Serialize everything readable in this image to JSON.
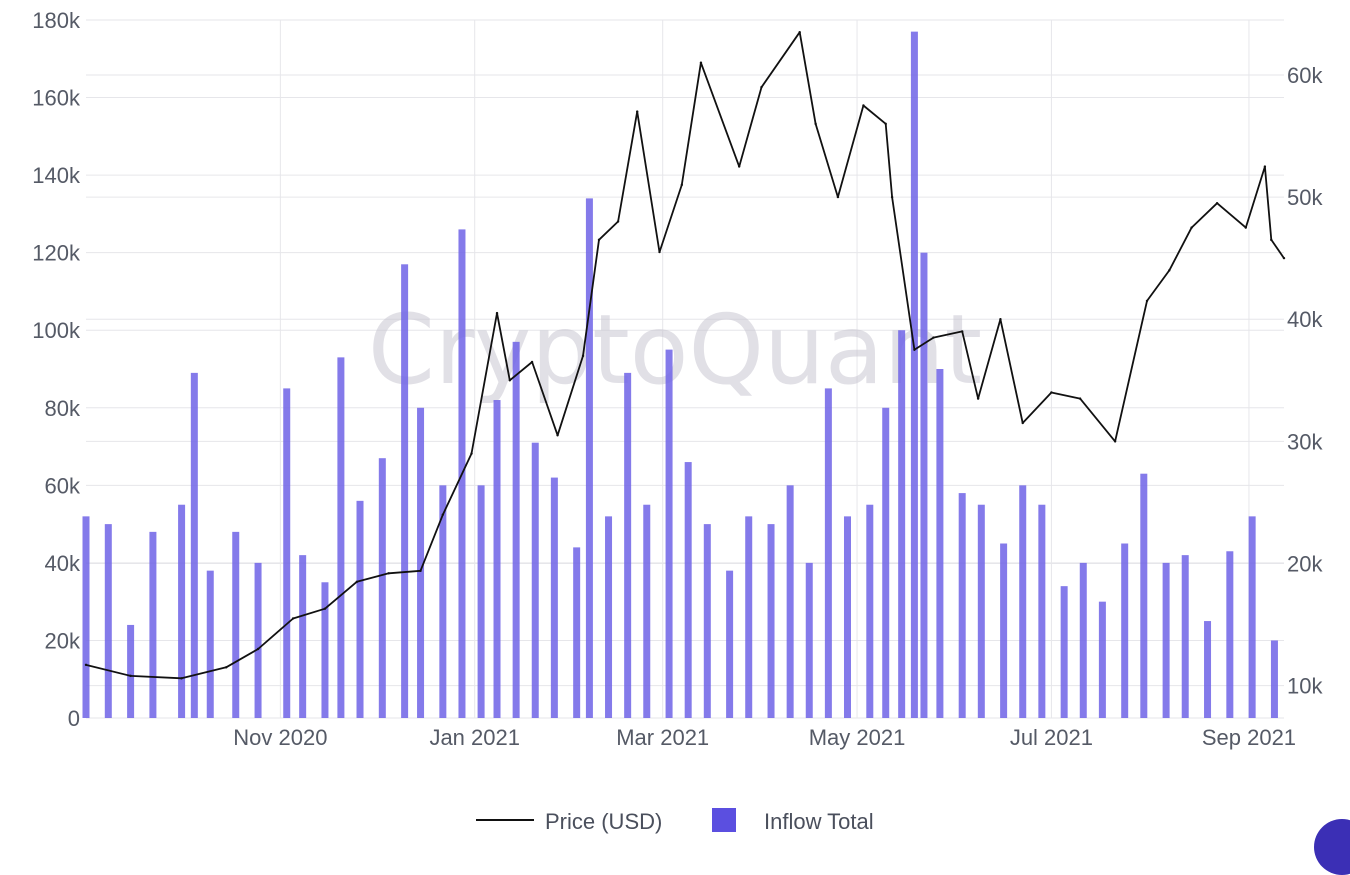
{
  "watermark": "CryptoQuant",
  "legend": {
    "price_label": "Price (USD)",
    "inflow_label": "Inflow Total"
  },
  "colors": {
    "bar": "#6f63e6",
    "line": "#111111",
    "grid": "#e6e6ea",
    "tick": "#555a66"
  },
  "chart_data": {
    "type": "bar+line",
    "title": "",
    "x_start": "2020-09-01",
    "x_end": "2021-09-12",
    "x_ticks": [
      "Nov 2020",
      "Jan 2021",
      "Mar 2021",
      "May 2021",
      "Jul 2021",
      "Sep 2021"
    ],
    "y_left": {
      "label": "",
      "ylim": [
        0,
        180000
      ],
      "ticks": [
        "0",
        "20k",
        "40k",
        "60k",
        "80k",
        "100k",
        "120k",
        "140k",
        "160k",
        "180k"
      ]
    },
    "y_right": {
      "label": "",
      "ylim": [
        7350,
        64500
      ],
      "ticks": [
        "10k",
        "20k",
        "30k",
        "40k",
        "50k",
        "60k"
      ]
    },
    "grid": true,
    "legend_position": "bottom-center",
    "series": [
      {
        "name": "Inflow Total",
        "kind": "bar",
        "axis": "left",
        "points": [
          [
            "2020-09-01",
            52000
          ],
          [
            "2020-09-08",
            50000
          ],
          [
            "2020-09-15",
            24000
          ],
          [
            "2020-09-22",
            48000
          ],
          [
            "2020-10-01",
            55000
          ],
          [
            "2020-10-05",
            89000
          ],
          [
            "2020-10-10",
            38000
          ],
          [
            "2020-10-18",
            48000
          ],
          [
            "2020-10-25",
            40000
          ],
          [
            "2020-11-03",
            85000
          ],
          [
            "2020-11-08",
            42000
          ],
          [
            "2020-11-15",
            35000
          ],
          [
            "2020-11-20",
            93000
          ],
          [
            "2020-11-26",
            56000
          ],
          [
            "2020-12-03",
            67000
          ],
          [
            "2020-12-10",
            117000
          ],
          [
            "2020-12-15",
            80000
          ],
          [
            "2020-12-22",
            60000
          ],
          [
            "2020-12-28",
            126000
          ],
          [
            "2021-01-03",
            60000
          ],
          [
            "2021-01-08",
            82000
          ],
          [
            "2021-01-14",
            97000
          ],
          [
            "2021-01-20",
            71000
          ],
          [
            "2021-01-26",
            62000
          ],
          [
            "2021-02-02",
            44000
          ],
          [
            "2021-02-06",
            134000
          ],
          [
            "2021-02-12",
            52000
          ],
          [
            "2021-02-18",
            89000
          ],
          [
            "2021-02-24",
            55000
          ],
          [
            "2021-03-03",
            95000
          ],
          [
            "2021-03-09",
            66000
          ],
          [
            "2021-03-15",
            50000
          ],
          [
            "2021-03-22",
            38000
          ],
          [
            "2021-03-28",
            52000
          ],
          [
            "2021-04-04",
            50000
          ],
          [
            "2021-04-10",
            60000
          ],
          [
            "2021-04-16",
            40000
          ],
          [
            "2021-04-22",
            85000
          ],
          [
            "2021-04-28",
            52000
          ],
          [
            "2021-05-05",
            55000
          ],
          [
            "2021-05-10",
            80000
          ],
          [
            "2021-05-15",
            100000
          ],
          [
            "2021-05-19",
            177000
          ],
          [
            "2021-05-22",
            120000
          ],
          [
            "2021-05-27",
            90000
          ],
          [
            "2021-06-03",
            58000
          ],
          [
            "2021-06-09",
            55000
          ],
          [
            "2021-06-16",
            45000
          ],
          [
            "2021-06-22",
            60000
          ],
          [
            "2021-06-28",
            55000
          ],
          [
            "2021-07-05",
            34000
          ],
          [
            "2021-07-11",
            40000
          ],
          [
            "2021-07-17",
            30000
          ],
          [
            "2021-07-24",
            45000
          ],
          [
            "2021-07-30",
            63000
          ],
          [
            "2021-08-06",
            40000
          ],
          [
            "2021-08-12",
            42000
          ],
          [
            "2021-08-19",
            25000
          ],
          [
            "2021-08-26",
            43000
          ],
          [
            "2021-09-02",
            52000
          ],
          [
            "2021-09-09",
            20000
          ]
        ]
      },
      {
        "name": "Price (USD)",
        "kind": "line",
        "axis": "right",
        "points": [
          [
            "2020-09-01",
            11700
          ],
          [
            "2020-09-15",
            10800
          ],
          [
            "2020-10-01",
            10600
          ],
          [
            "2020-10-15",
            11500
          ],
          [
            "2020-10-25",
            13000
          ],
          [
            "2020-11-05",
            15500
          ],
          [
            "2020-11-15",
            16300
          ],
          [
            "2020-11-25",
            18500
          ],
          [
            "2020-12-05",
            19200
          ],
          [
            "2020-12-15",
            19400
          ],
          [
            "2020-12-22",
            24000
          ],
          [
            "2020-12-31",
            29000
          ],
          [
            "2021-01-08",
            40500
          ],
          [
            "2021-01-12",
            35000
          ],
          [
            "2021-01-19",
            36500
          ],
          [
            "2021-01-27",
            30500
          ],
          [
            "2021-02-04",
            37000
          ],
          [
            "2021-02-09",
            46500
          ],
          [
            "2021-02-15",
            48000
          ],
          [
            "2021-02-21",
            57000
          ],
          [
            "2021-02-28",
            45500
          ],
          [
            "2021-03-07",
            51000
          ],
          [
            "2021-03-13",
            61000
          ],
          [
            "2021-03-25",
            52500
          ],
          [
            "2021-04-01",
            59000
          ],
          [
            "2021-04-13",
            63500
          ],
          [
            "2021-04-18",
            56000
          ],
          [
            "2021-04-25",
            50000
          ],
          [
            "2021-05-03",
            57500
          ],
          [
            "2021-05-10",
            56000
          ],
          [
            "2021-05-12",
            50000
          ],
          [
            "2021-05-19",
            37500
          ],
          [
            "2021-05-25",
            38500
          ],
          [
            "2021-06-03",
            39000
          ],
          [
            "2021-06-08",
            33500
          ],
          [
            "2021-06-15",
            40000
          ],
          [
            "2021-06-22",
            31500
          ],
          [
            "2021-07-01",
            34000
          ],
          [
            "2021-07-10",
            33500
          ],
          [
            "2021-07-21",
            30000
          ],
          [
            "2021-07-31",
            41500
          ],
          [
            "2021-08-07",
            44000
          ],
          [
            "2021-08-14",
            47500
          ],
          [
            "2021-08-22",
            49500
          ],
          [
            "2021-08-31",
            47500
          ],
          [
            "2021-09-06",
            52500
          ],
          [
            "2021-09-08",
            46500
          ],
          [
            "2021-09-12",
            45000
          ]
        ]
      }
    ]
  }
}
